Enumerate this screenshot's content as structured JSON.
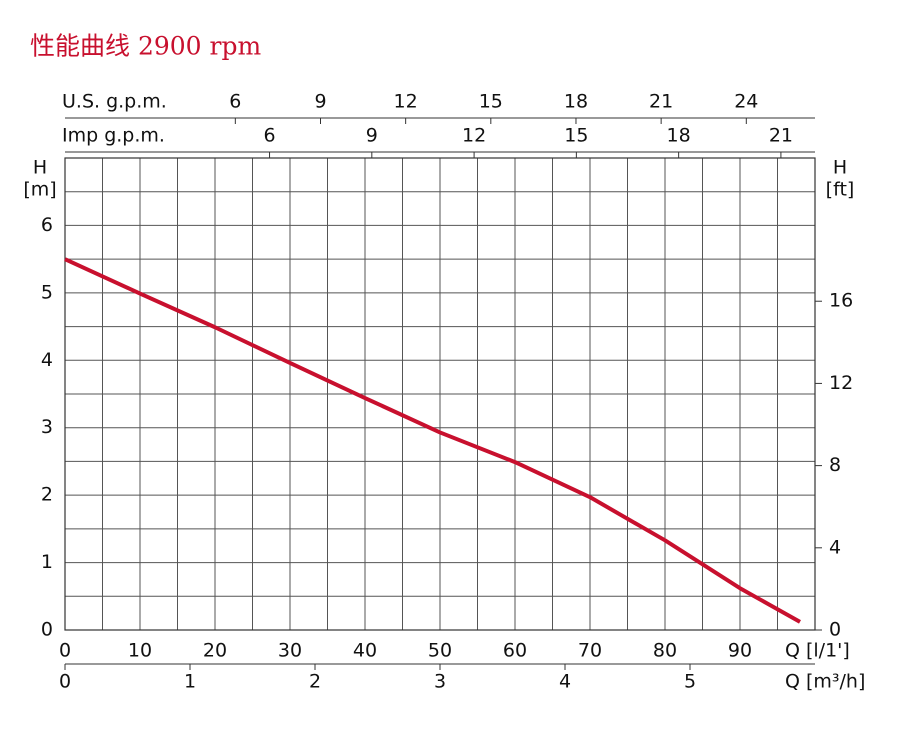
{
  "chart_data": {
    "type": "line",
    "title": "性能曲线 2900 rpm",
    "x": [
      0,
      10,
      20,
      30,
      40,
      50,
      60,
      70,
      80,
      90,
      98
    ],
    "series": [
      {
        "color": "#c8102e",
        "values": [
          5.5,
          4.99,
          4.49,
          3.96,
          3.44,
          2.93,
          2.49,
          1.97,
          1.33,
          0.62,
          0.12
        ]
      }
    ],
    "xlim": [
      0,
      100
    ],
    "xticks": [
      0,
      10,
      20,
      30,
      40,
      50,
      60,
      70,
      80,
      90
    ],
    "xlabel": "Q [l/1']",
    "ylim": [
      0,
      7
    ],
    "yticks": [
      0,
      1,
      2,
      3,
      4,
      5,
      6
    ],
    "ylabel": [
      "H",
      "[m]"
    ],
    "y2lim": [
      0,
      22.97
    ],
    "y2ticks": [
      0,
      4,
      8,
      12,
      16
    ],
    "y2label": [
      "H",
      "[ft]"
    ],
    "xminor": [
      5,
      15,
      25,
      35,
      45,
      55,
      65,
      75,
      85,
      95
    ],
    "yminor": [
      0.5,
      1.5,
      2.5,
      3.5,
      4.5,
      5.5,
      6.5
    ],
    "grid": true,
    "m3h_axis": {
      "label": "Q [m³/h]",
      "lim": [
        0,
        6
      ],
      "ticks": [
        0,
        1,
        2,
        3,
        4,
        5
      ]
    },
    "us_gpm_axis": {
      "label": "U.S. g.p.m.",
      "lim": [
        0,
        26.42
      ],
      "ticks": [
        6,
        9,
        12,
        15,
        18,
        21,
        24
      ]
    },
    "imp_gpm_axis": {
      "label": "Imp g.p.m.",
      "lim": [
        0,
        22
      ],
      "ticks": [
        6,
        9,
        12,
        15,
        18,
        21
      ]
    }
  }
}
